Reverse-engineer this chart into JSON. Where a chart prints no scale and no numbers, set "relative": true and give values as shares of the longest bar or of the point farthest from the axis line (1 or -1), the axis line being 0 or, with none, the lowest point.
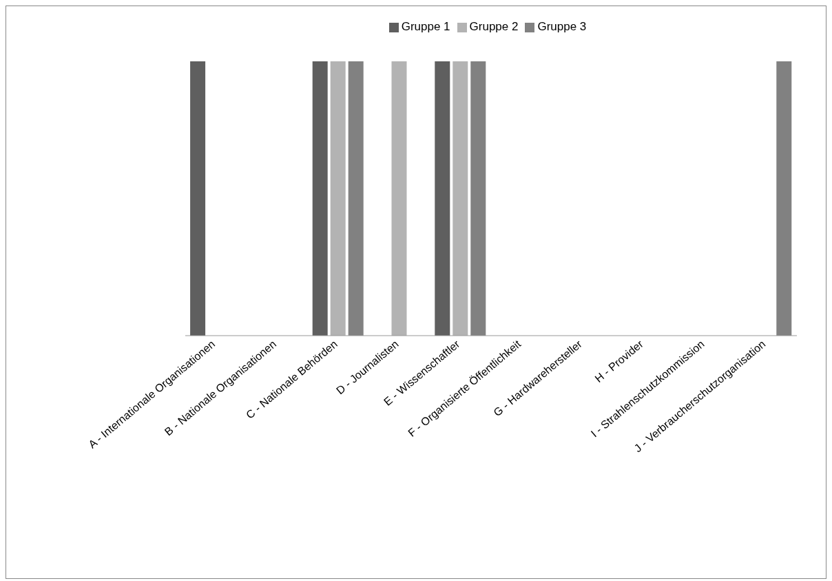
{
  "chart_data": {
    "type": "bar",
    "relative": true,
    "legend": "top",
    "categories": [
      "A - Internationale Organisationen",
      "B - Nationale Organisationen",
      "C - Nationale Behörden",
      "D - Journalisten",
      "E - Wissenschaftler",
      "F - Organisierte Öffentlichkeit",
      "G - Hardwarehersteller",
      "H - Provider",
      "I - Strahlenschutzkommission",
      "J - Verbraucherschutzorganisation"
    ],
    "series": [
      {
        "name": "Gruppe 1",
        "color": "#5f5f5f",
        "values": [
          1,
          null,
          1,
          null,
          1,
          null,
          null,
          null,
          null,
          null
        ]
      },
      {
        "name": "Gruppe 2",
        "color": "#b3b3b3",
        "values": [
          null,
          null,
          1,
          1,
          1,
          null,
          null,
          null,
          null,
          null
        ]
      },
      {
        "name": "Gruppe 3",
        "color": "#818181",
        "values": [
          null,
          null,
          1,
          null,
          1,
          null,
          null,
          null,
          null,
          1
        ]
      }
    ]
  }
}
